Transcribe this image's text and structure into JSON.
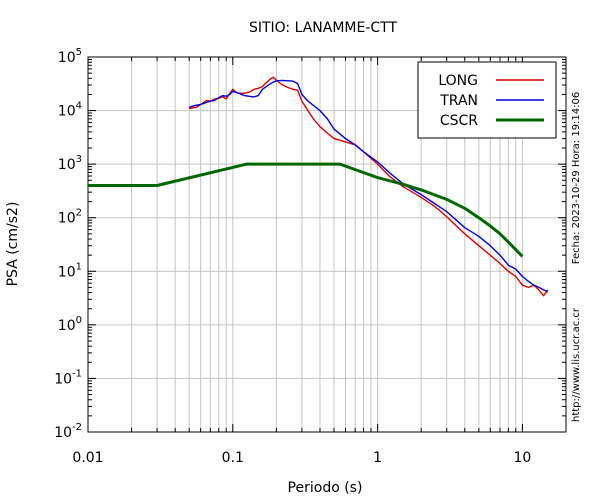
{
  "chart_data": {
    "type": "line",
    "title": "SITIO: LANAMME-CTT",
    "xlabel": "Periodo (s)",
    "ylabel": "PSA (cm/s2)",
    "xscale": "log",
    "yscale": "log",
    "xlim": [
      0.01,
      20
    ],
    "ylim": [
      0.01,
      100000
    ],
    "grid": true,
    "legend_position": "top-right",
    "x_ticks": [
      {
        "value": 0.01,
        "label": "0.01"
      },
      {
        "value": 0.1,
        "label": "0.1"
      },
      {
        "value": 1,
        "label": "1"
      },
      {
        "value": 10,
        "label": "10"
      }
    ],
    "y_ticks": [
      {
        "value": 0.01,
        "base": "10",
        "exp": "-2"
      },
      {
        "value": 0.1,
        "base": "10",
        "exp": "-1"
      },
      {
        "value": 1,
        "base": "10",
        "exp": "0"
      },
      {
        "value": 10,
        "base": "10",
        "exp": "1"
      },
      {
        "value": 100,
        "base": "10",
        "exp": "2"
      },
      {
        "value": 1000,
        "base": "10",
        "exp": "3"
      },
      {
        "value": 10000,
        "base": "10",
        "exp": "4"
      },
      {
        "value": 100000,
        "base": "10",
        "exp": "5"
      }
    ],
    "series": [
      {
        "name": "LONG",
        "color": "#e00000",
        "points": [
          [
            0.05,
            11000
          ],
          [
            0.056,
            11500
          ],
          [
            0.06,
            13000
          ],
          [
            0.066,
            15500
          ],
          [
            0.07,
            15000
          ],
          [
            0.075,
            16500
          ],
          [
            0.08,
            17000
          ],
          [
            0.085,
            18000
          ],
          [
            0.09,
            16500
          ],
          [
            0.095,
            20500
          ],
          [
            0.1,
            25000
          ],
          [
            0.105,
            22000
          ],
          [
            0.11,
            21000
          ],
          [
            0.12,
            21000
          ],
          [
            0.13,
            22000
          ],
          [
            0.14,
            25000
          ],
          [
            0.15,
            26000
          ],
          [
            0.16,
            28000
          ],
          [
            0.17,
            33000
          ],
          [
            0.18,
            38000
          ],
          [
            0.19,
            42000
          ],
          [
            0.2,
            37000
          ],
          [
            0.21,
            33000
          ],
          [
            0.22,
            30000
          ],
          [
            0.24,
            27000
          ],
          [
            0.26,
            25000
          ],
          [
            0.28,
            24000
          ],
          [
            0.3,
            15000
          ],
          [
            0.33,
            10000
          ],
          [
            0.36,
            7000
          ],
          [
            0.4,
            5000
          ],
          [
            0.45,
            3800
          ],
          [
            0.5,
            3000
          ],
          [
            0.6,
            2600
          ],
          [
            0.7,
            2300
          ],
          [
            0.8,
            1700
          ],
          [
            1.0,
            1000
          ],
          [
            1.2,
            600
          ],
          [
            1.5,
            380
          ],
          [
            2.0,
            240
          ],
          [
            2.5,
            160
          ],
          [
            3.0,
            105
          ],
          [
            3.5,
            70
          ],
          [
            4.0,
            50
          ],
          [
            5.0,
            30
          ],
          [
            6.0,
            20
          ],
          [
            7.0,
            14
          ],
          [
            8.0,
            10
          ],
          [
            9.0,
            8
          ],
          [
            10.0,
            5.5
          ],
          [
            11.0,
            5
          ],
          [
            12.0,
            5.5
          ],
          [
            13.0,
            4.5
          ],
          [
            14.0,
            3.5
          ],
          [
            15.0,
            4.5
          ]
        ]
      },
      {
        "name": "TRAN",
        "color": "#0000dd",
        "points": [
          [
            0.05,
            11500
          ],
          [
            0.055,
            12500
          ],
          [
            0.06,
            13000
          ],
          [
            0.065,
            14000
          ],
          [
            0.07,
            15000
          ],
          [
            0.075,
            15500
          ],
          [
            0.08,
            17500
          ],
          [
            0.085,
            19000
          ],
          [
            0.09,
            18500
          ],
          [
            0.095,
            20000
          ],
          [
            0.1,
            23000
          ],
          [
            0.11,
            21000
          ],
          [
            0.12,
            19000
          ],
          [
            0.13,
            18500
          ],
          [
            0.14,
            18000
          ],
          [
            0.15,
            19000
          ],
          [
            0.16,
            25000
          ],
          [
            0.17,
            28000
          ],
          [
            0.18,
            31000
          ],
          [
            0.19,
            34000
          ],
          [
            0.2,
            36000
          ],
          [
            0.22,
            36500
          ],
          [
            0.24,
            36000
          ],
          [
            0.26,
            35500
          ],
          [
            0.28,
            32000
          ],
          [
            0.3,
            20000
          ],
          [
            0.33,
            15000
          ],
          [
            0.36,
            12500
          ],
          [
            0.4,
            10000
          ],
          [
            0.45,
            7000
          ],
          [
            0.5,
            4500
          ],
          [
            0.6,
            3000
          ],
          [
            0.7,
            2300
          ],
          [
            0.8,
            1700
          ],
          [
            1.0,
            1100
          ],
          [
            1.2,
            700
          ],
          [
            1.5,
            430
          ],
          [
            2.0,
            270
          ],
          [
            2.5,
            180
          ],
          [
            3.0,
            130
          ],
          [
            3.5,
            90
          ],
          [
            4.0,
            65
          ],
          [
            5.0,
            45
          ],
          [
            6.0,
            30
          ],
          [
            7.0,
            20
          ],
          [
            8.0,
            13
          ],
          [
            9.0,
            11
          ],
          [
            10.0,
            8
          ],
          [
            11.0,
            6.5
          ],
          [
            12.0,
            5.5
          ],
          [
            13.0,
            5
          ],
          [
            14.0,
            4.5
          ],
          [
            15.0,
            4.2
          ]
        ]
      },
      {
        "name": "CSCR",
        "color": "#006600",
        "points": [
          [
            0.01,
            400
          ],
          [
            0.03,
            400
          ],
          [
            0.125,
            1000
          ],
          [
            0.55,
            1000
          ],
          [
            1.0,
            560
          ],
          [
            1.5,
            420
          ],
          [
            2.0,
            330
          ],
          [
            3.0,
            220
          ],
          [
            4.0,
            150
          ],
          [
            5.0,
            100
          ],
          [
            6.0,
            70
          ],
          [
            7.0,
            50
          ],
          [
            8.0,
            35
          ],
          [
            10.0,
            19
          ]
        ]
      }
    ]
  },
  "side_texts": {
    "date_time": "Fecha: 2023-10-29  Hora: 19:14:06",
    "url": "http://www.lis.ucr.ac.cr"
  }
}
